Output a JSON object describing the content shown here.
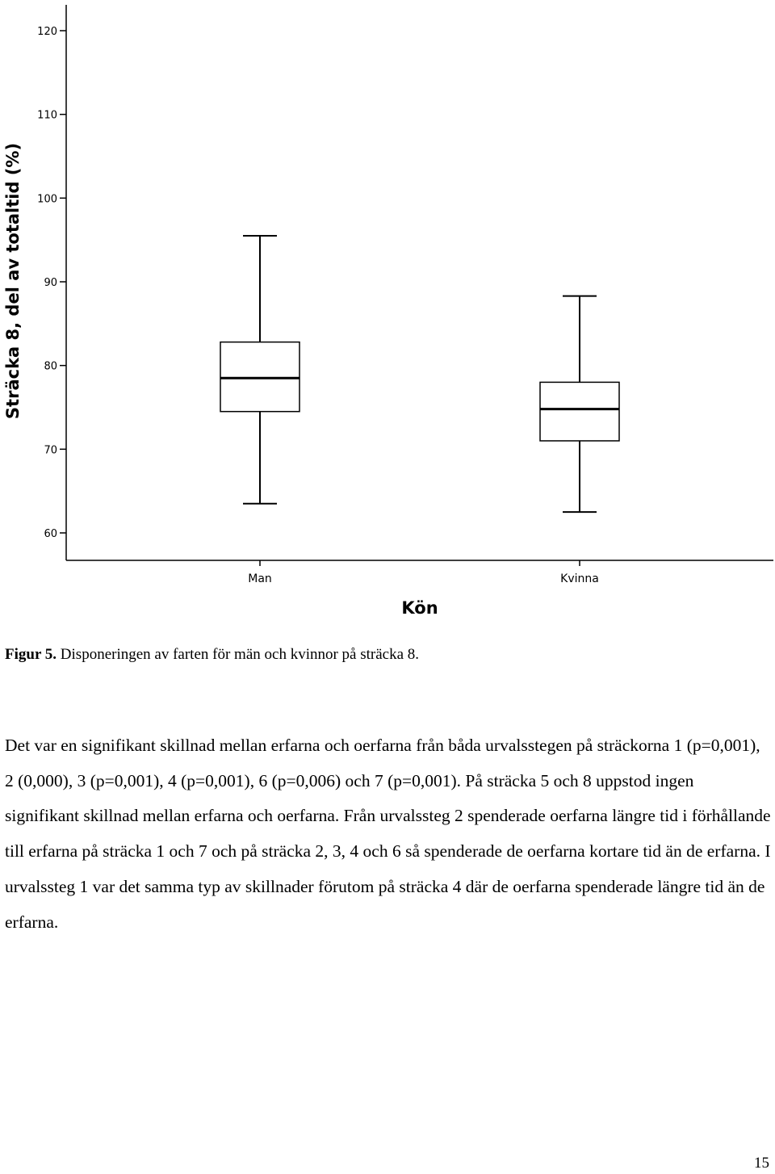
{
  "chart_data": {
    "type": "box",
    "ylabel": "Sträcka 8, del av totaltid (%)",
    "xlabel": "Kön",
    "yticks": [
      60,
      70,
      80,
      90,
      100,
      110,
      120
    ],
    "ylim": [
      57,
      124
    ],
    "categories": [
      "Man",
      "Kvinna"
    ],
    "boxes": [
      {
        "name": "Man",
        "min": 63.5,
        "q1": 74.5,
        "median": 78.5,
        "q3": 82.8,
        "max": 95.5
      },
      {
        "name": "Kvinna",
        "min": 62.5,
        "q1": 71.0,
        "median": 74.8,
        "q3": 78.0,
        "max": 88.3
      }
    ]
  },
  "caption": {
    "label": "Figur 5.",
    "text": "Disponeringen av farten för män och kvinnor på sträcka 8."
  },
  "body_text": "Det var en signifikant skillnad mellan erfarna och oerfarna från båda urvalsstegen på sträckorna 1 (p=0,001), 2 (0,000), 3 (p=0,001), 4 (p=0,001), 6 (p=0,006) och 7 (p=0,001). På sträcka 5 och 8 uppstod ingen signifikant skillnad mellan erfarna och oerfarna. Från urvalssteg 2 spenderade oerfarna längre tid i förhållande till erfarna på sträcka 1 och 7 och på sträcka 2, 3, 4 och 6 så spenderade de oerfarna kortare tid än de erfarna. I urvalssteg 1 var det samma typ av skillnader förutom på sträcka 4 där de oerfarna spenderade längre tid än de erfarna.",
  "page_number": "15"
}
